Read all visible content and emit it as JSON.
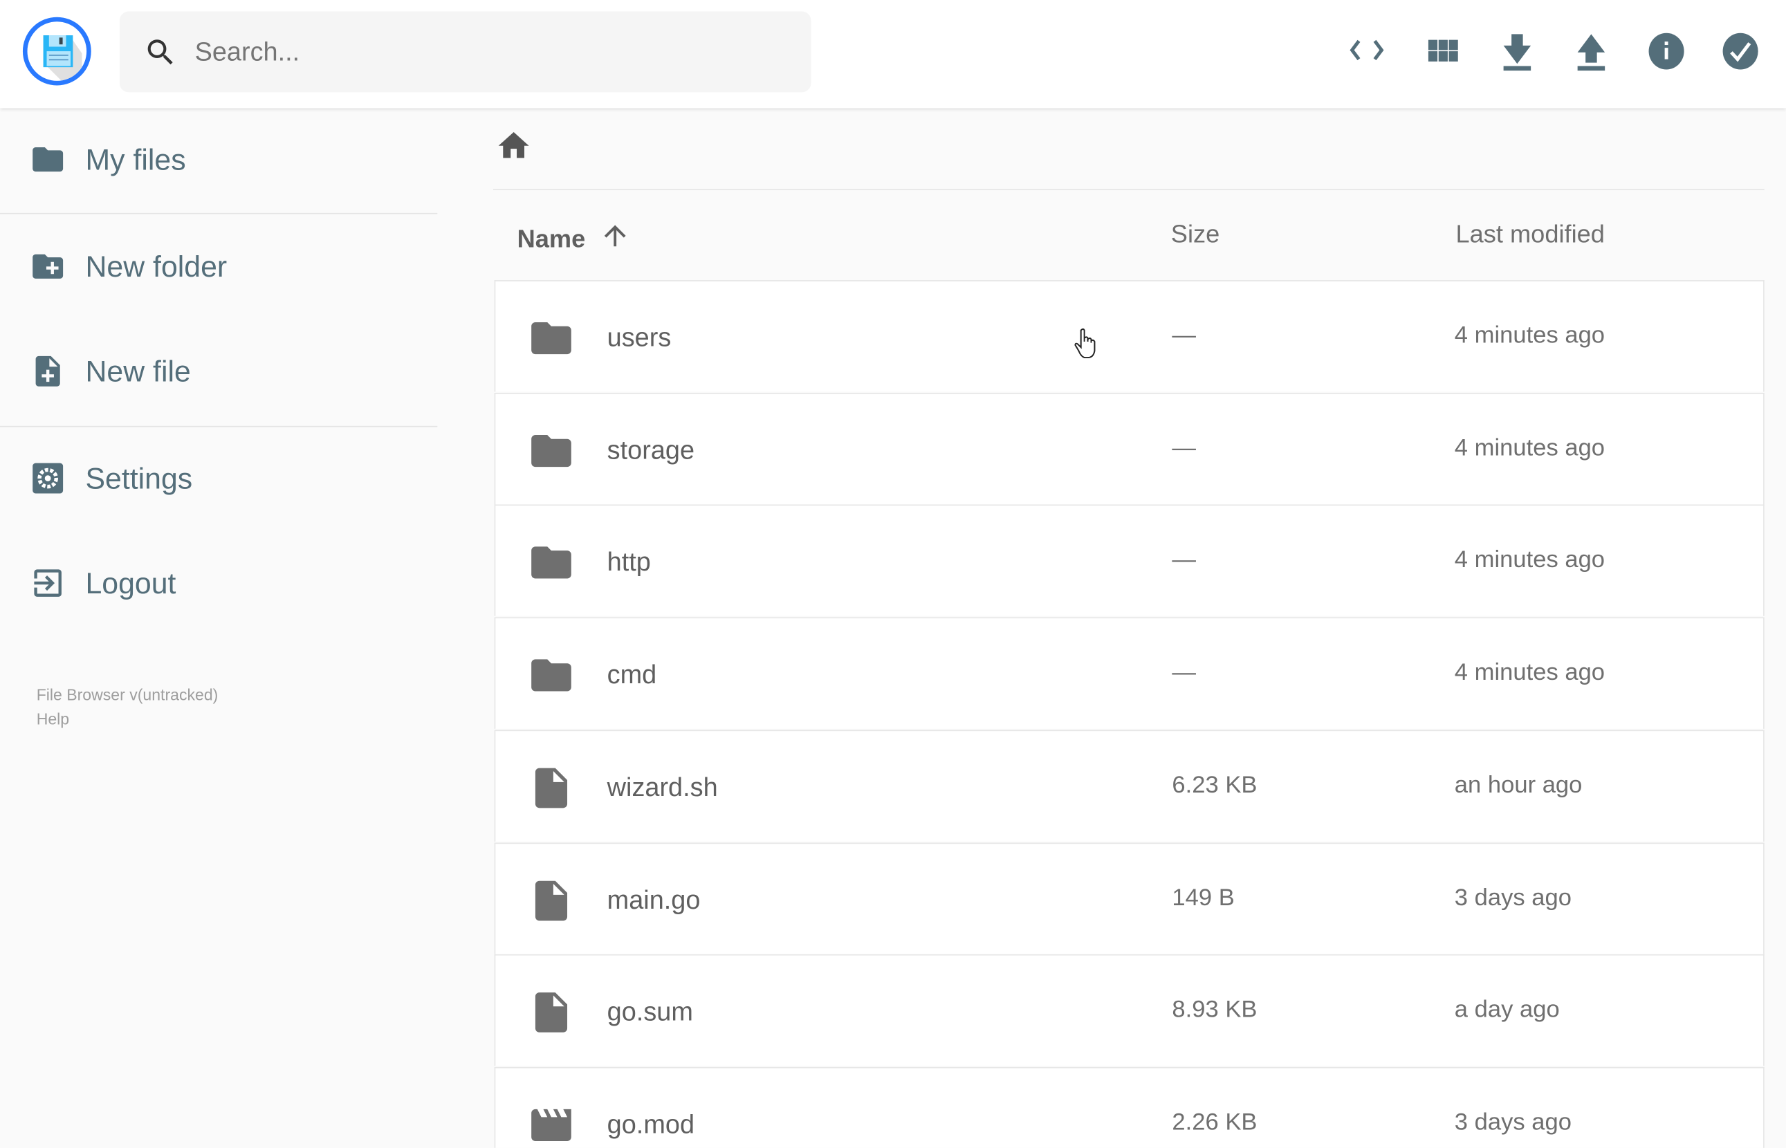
{
  "header": {
    "search_placeholder": "Search...",
    "actions": [
      {
        "name": "code-icon",
        "label": "Toggle view"
      },
      {
        "name": "grid-icon",
        "label": "Switch view"
      },
      {
        "name": "download-icon",
        "label": "Download"
      },
      {
        "name": "upload-icon",
        "label": "Upload"
      },
      {
        "name": "info-icon",
        "label": "Info"
      },
      {
        "name": "check-circle-icon",
        "label": "Select multiple"
      }
    ],
    "icon_color": "#546e7a",
    "logo_ring_color": "#2979ff"
  },
  "sidebar": {
    "items": [
      {
        "label": "My files",
        "icon": "folder-icon"
      },
      {
        "label": "New folder",
        "icon": "create-new-folder-icon"
      },
      {
        "label": "New file",
        "icon": "note-add-icon"
      },
      {
        "label": "Settings",
        "icon": "settings-icon"
      },
      {
        "label": "Logout",
        "icon": "logout-icon"
      }
    ],
    "footer": {
      "version": "File Browser v(untracked)",
      "help": "Help"
    }
  },
  "listing": {
    "columns": {
      "name": "Name",
      "size": "Size",
      "modified": "Last modified"
    },
    "sort": {
      "column": "name",
      "direction": "ascending"
    },
    "rows": [
      {
        "name": "users",
        "type": "folder",
        "size": "—",
        "modified": "4 minutes ago"
      },
      {
        "name": "storage",
        "type": "folder",
        "size": "—",
        "modified": "4 minutes ago"
      },
      {
        "name": "http",
        "type": "folder",
        "size": "—",
        "modified": "4 minutes ago"
      },
      {
        "name": "cmd",
        "type": "folder",
        "size": "—",
        "modified": "4 minutes ago"
      },
      {
        "name": "wizard.sh",
        "type": "file",
        "size": "6.23 KB",
        "modified": "an hour ago"
      },
      {
        "name": "main.go",
        "type": "file",
        "size": "149 B",
        "modified": "3 days ago"
      },
      {
        "name": "go.sum",
        "type": "file",
        "size": "8.93 KB",
        "modified": "a day ago"
      },
      {
        "name": "go.mod",
        "type": "video",
        "size": "2.26 KB",
        "modified": "3 days ago"
      }
    ]
  }
}
